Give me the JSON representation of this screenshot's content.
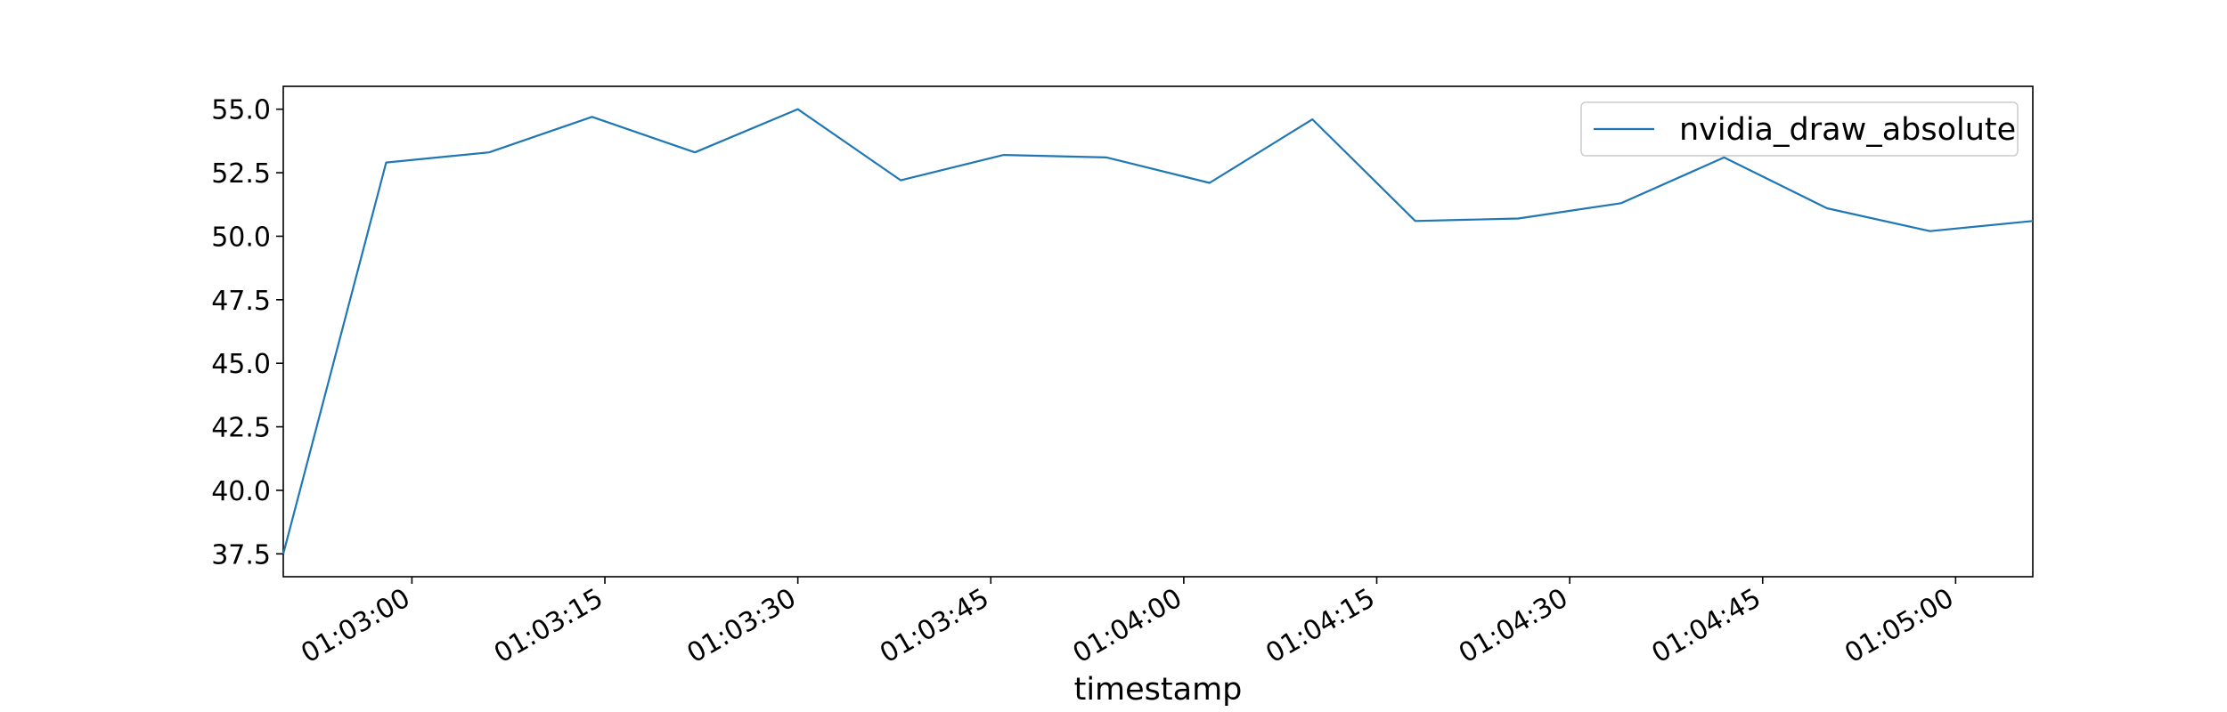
{
  "chart_data": {
    "type": "line",
    "title": "",
    "xlabel": "timestamp",
    "ylabel": "",
    "x_tick_labels": [
      "01:03:00",
      "01:03:15",
      "01:03:30",
      "01:03:45",
      "01:04:00",
      "01:04:15",
      "01:04:30",
      "01:04:45",
      "01:05:00"
    ],
    "x_tick_seconds": [
      60,
      75,
      90,
      105,
      120,
      135,
      150,
      165,
      180
    ],
    "y_tick_labels": [
      "37.5",
      "40.0",
      "42.5",
      "45.0",
      "47.5",
      "50.0",
      "52.5",
      "55.0"
    ],
    "y_ticks": [
      37.5,
      40.0,
      42.5,
      45.0,
      47.5,
      50.0,
      52.5,
      55.0
    ],
    "xlim": [
      "01:02:50",
      "01:05:06"
    ],
    "ylim": [
      36.6,
      55.9
    ],
    "grid": false,
    "legend_position": "top-right",
    "series": [
      {
        "name": "nvidia_draw_absolute",
        "color": "#1f77b4",
        "x": [
          "01:02:50",
          "01:02:58",
          "01:03:06",
          "01:03:14",
          "01:03:22",
          "01:03:30",
          "01:03:38",
          "01:03:46",
          "01:03:54",
          "01:04:02",
          "01:04:10",
          "01:04:18",
          "01:04:26",
          "01:04:34",
          "01:04:42",
          "01:04:50",
          "01:04:58",
          "01:05:06"
        ],
        "values": [
          37.5,
          52.9,
          53.3,
          54.7,
          53.3,
          55.0,
          52.2,
          53.2,
          53.1,
          52.1,
          54.6,
          50.6,
          50.7,
          51.3,
          53.1,
          51.1,
          50.2,
          50.6
        ]
      }
    ]
  }
}
